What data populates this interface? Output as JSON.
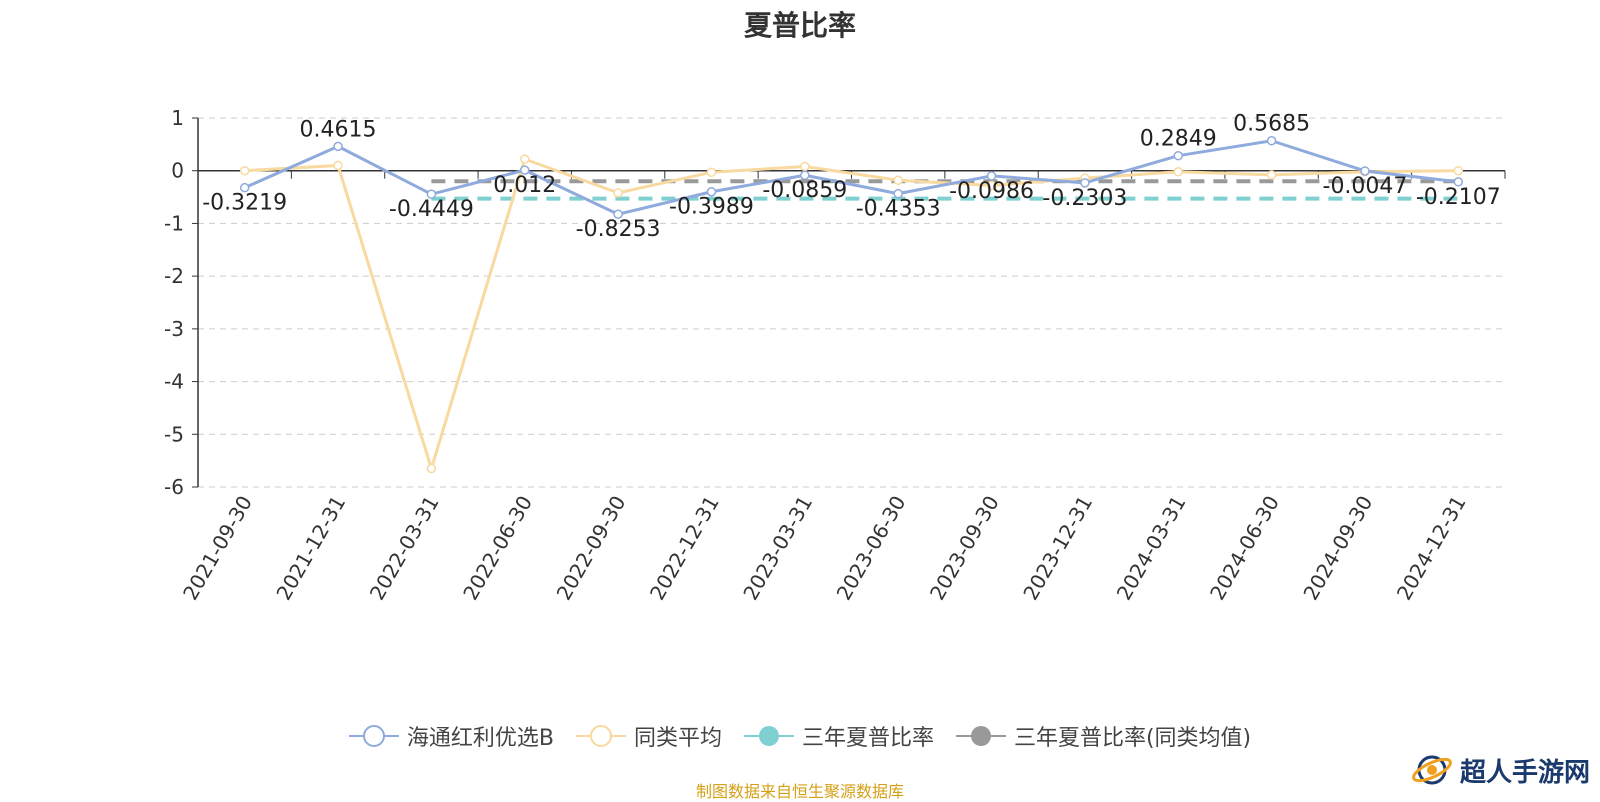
{
  "colors": {
    "fund": "#8faadc",
    "avg": "#f8d9a0",
    "three_year": "#7fd1d1",
    "three_year_avg": "#999999",
    "axis": "#333333",
    "grid": "#cccccc"
  },
  "source_note": "制图数据来自恒生聚源数据库",
  "watermark": {
    "text": "超人手游网",
    "icon": "globe-logo-icon"
  },
  "chart_data": {
    "type": "line",
    "title": "夏普比率",
    "xlabel": "",
    "ylabel": "",
    "ylim": [
      -6,
      1
    ],
    "yticks": [
      "1",
      "0",
      "-1",
      "-2",
      "-3",
      "-4",
      "-5",
      "-6"
    ],
    "grid": true,
    "legend_position": "bottom",
    "categories": [
      "2021-09-30",
      "2021-12-31",
      "2022-03-31",
      "2022-06-30",
      "2022-09-30",
      "2022-12-31",
      "2023-03-31",
      "2023-06-30",
      "2023-09-30",
      "2023-12-31",
      "2024-03-31",
      "2024-06-30",
      "2024-09-30",
      "2024-12-31"
    ],
    "series": [
      {
        "name": "海通红利优选B",
        "values": [
          -0.3219,
          0.4615,
          -0.4449,
          0.012,
          -0.8253,
          -0.3989,
          -0.0859,
          -0.4353,
          -0.0986,
          -0.2303,
          0.2849,
          0.5685,
          -0.0047,
          -0.2107
        ],
        "labels": [
          "-0.3219",
          "0.4615",
          "-0.4449",
          "0.012",
          "-0.8253",
          "-0.3989",
          "-0.0859",
          "-0.4353",
          "-0.0986",
          "-0.2303",
          "0.2849",
          "0.5685",
          "-0.0047",
          "-0.2107"
        ]
      },
      {
        "name": "同类平均",
        "values": [
          0.0,
          0.1,
          -5.65,
          0.22,
          -0.42,
          -0.03,
          0.08,
          -0.18,
          -0.28,
          -0.14,
          -0.02,
          -0.08,
          -0.02,
          0.0
        ]
      }
    ],
    "reference_lines": [
      {
        "name": "三年夏普比率",
        "value": -0.53,
        "x_start": "2022-03-31",
        "x_end": "2024-12-31"
      },
      {
        "name": "三年夏普比率(同类均值)",
        "value": -0.2,
        "x_start": "2022-03-31",
        "x_end": "2024-12-31"
      }
    ]
  }
}
